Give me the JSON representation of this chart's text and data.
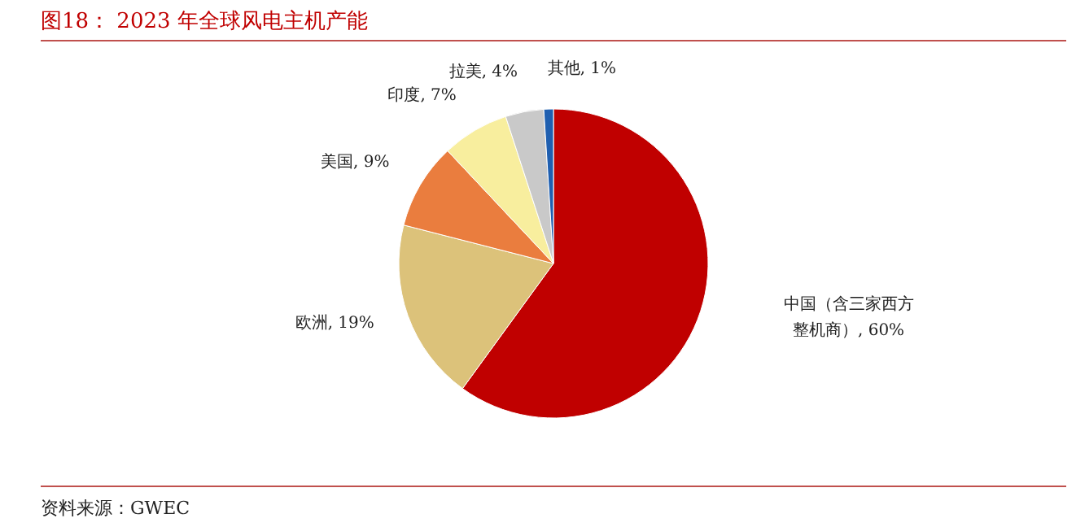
{
  "chart_data": {
    "type": "pie",
    "title": "图18：  2023 年全球风电主机产能",
    "categories": [
      "中国（含三家西方整机商）",
      "欧洲",
      "美国",
      "印度",
      "拉美",
      "其他"
    ],
    "values": [
      60,
      19,
      9,
      7,
      4,
      1
    ],
    "value_labels": [
      "60%",
      "19%",
      "9%",
      "7%",
      "4%",
      "1%"
    ],
    "colors": [
      "#c00000",
      "#dcc27a",
      "#ea7d3e",
      "#f8ee9e",
      "#c9c9c9",
      "#1f5fb0"
    ],
    "annotations": [
      "资料来源：GWEC"
    ]
  }
}
